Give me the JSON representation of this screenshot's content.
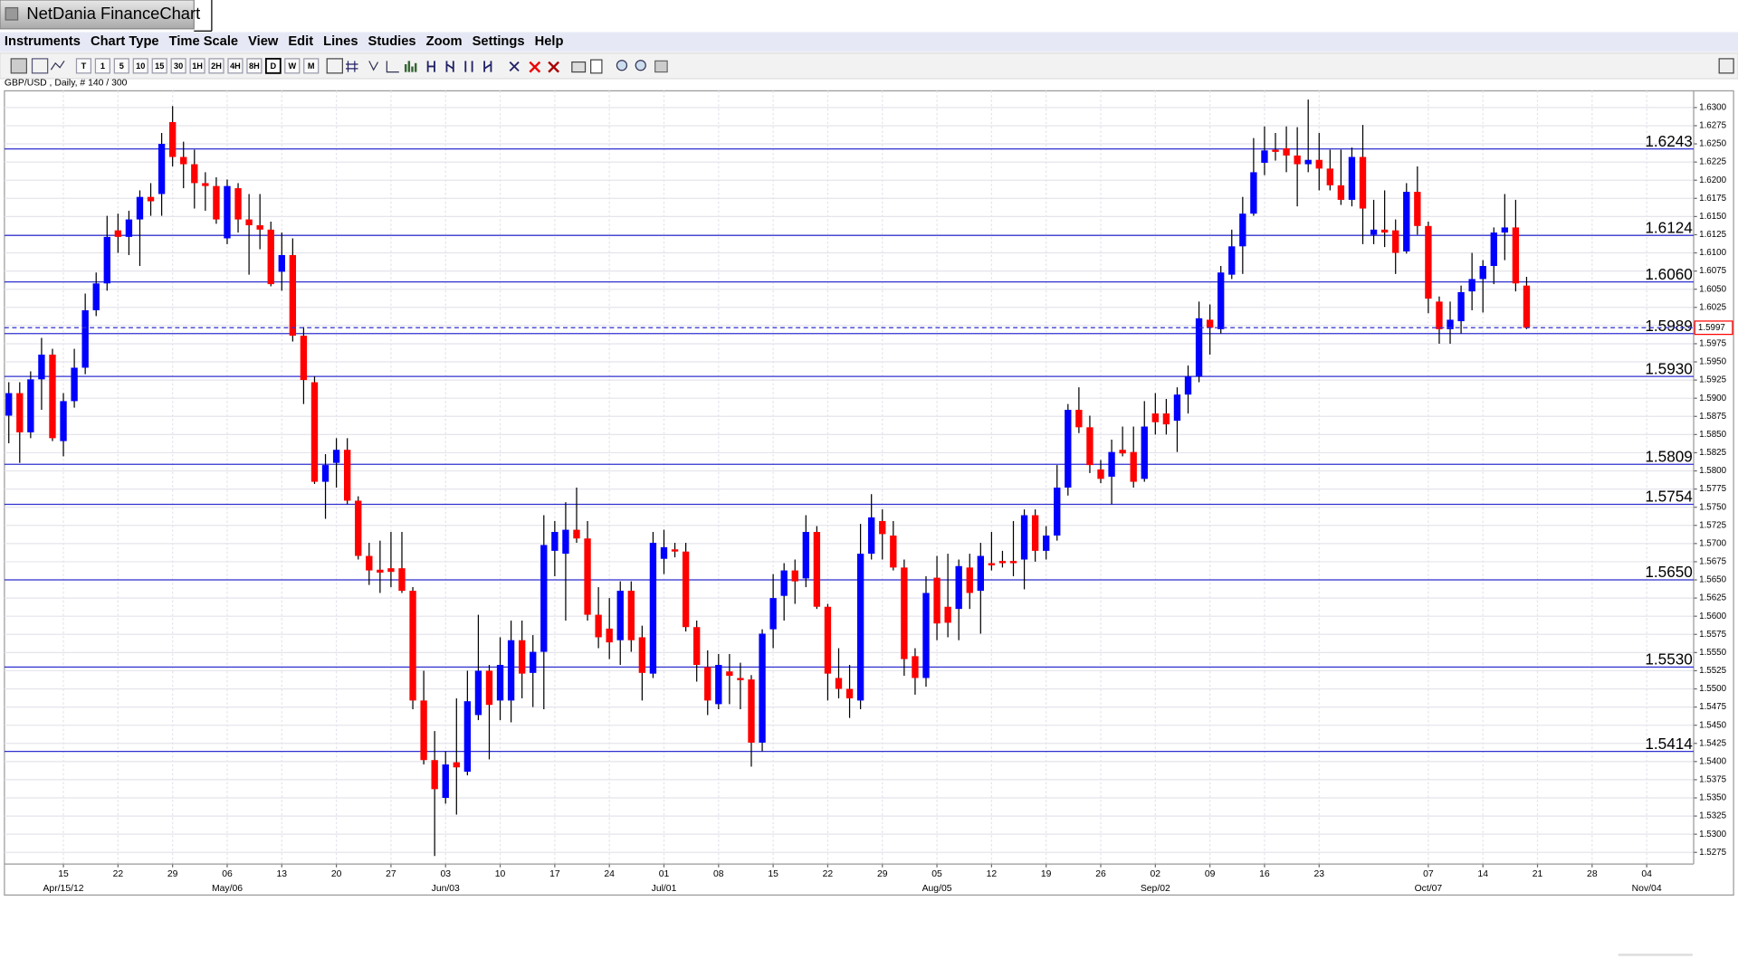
{
  "window": {
    "title": "NetDania FinanceChart"
  },
  "menu": [
    "Instruments",
    "Chart Type",
    "Time Scale",
    "View",
    "Edit",
    "Lines",
    "Studies",
    "Zoom",
    "Settings",
    "Help"
  ],
  "toolbar": {
    "timeframes": [
      "T",
      "1",
      "5",
      "10",
      "15",
      "30",
      "1H",
      "2H",
      "4H",
      "8H",
      "D",
      "W",
      "M"
    ],
    "selected": "D"
  },
  "chart_data": {
    "type": "candlestick",
    "instrument_label": "GBP/USD , Daily, # 140 / 300",
    "up_color": "#0000ff",
    "down_color": "#ff0000",
    "level_color": "#3030d0",
    "grid": true,
    "xlim": [
      -0.4,
      154.3
    ],
    "xticks": [
      {
        "value": 5,
        "label": "15"
      },
      {
        "value": 10,
        "label": "22"
      },
      {
        "value": 15,
        "label": "29"
      },
      {
        "value": 20,
        "label": "06"
      },
      {
        "value": 25,
        "label": "13"
      },
      {
        "value": 30,
        "label": "20"
      },
      {
        "value": 35,
        "label": "27"
      },
      {
        "value": 40,
        "label": "03"
      },
      {
        "value": 45,
        "label": "10"
      },
      {
        "value": 50,
        "label": "17"
      },
      {
        "value": 55,
        "label": "24"
      },
      {
        "value": 60,
        "label": "01"
      },
      {
        "value": 65,
        "label": "08"
      },
      {
        "value": 70,
        "label": "15"
      },
      {
        "value": 75,
        "label": "22"
      },
      {
        "value": 80,
        "label": "29"
      },
      {
        "value": 85,
        "label": "05"
      },
      {
        "value": 90,
        "label": "12"
      },
      {
        "value": 95,
        "label": "19"
      },
      {
        "value": 100,
        "label": "26"
      },
      {
        "value": 105,
        "label": "02"
      },
      {
        "value": 110,
        "label": "09"
      },
      {
        "value": 115,
        "label": "16"
      },
      {
        "value": 120,
        "label": "23"
      },
      {
        "value": 130,
        "label": "07"
      },
      {
        "value": 135,
        "label": "14"
      },
      {
        "value": 140,
        "label": "21"
      },
      {
        "value": 145,
        "label": "28"
      },
      {
        "value": 150,
        "label": "04"
      }
    ],
    "date_labels": [
      {
        "value": 5,
        "label": "Apr/15/12"
      },
      {
        "value": 20,
        "label": "May/06"
      },
      {
        "value": 40,
        "label": "Jun/03"
      },
      {
        "value": 60,
        "label": "Jul/01"
      },
      {
        "value": 85,
        "label": "Aug/05"
      },
      {
        "value": 105,
        "label": "Sep/02"
      },
      {
        "value": 130,
        "label": "Oct/07"
      },
      {
        "value": 150,
        "label": "Nov/04"
      }
    ],
    "ylim": [
      1.5259,
      1.6323
    ],
    "yticks": [
      1.5275,
      {
        "value": 1.53,
        "label": "1.5300"
      },
      1.5325,
      {
        "value": 1.535,
        "label": "1.5350"
      },
      1.5375,
      {
        "value": 1.54,
        "label": "1.5400"
      },
      1.5425,
      {
        "value": 1.545,
        "label": "1.5450"
      },
      1.5475,
      {
        "value": 1.55,
        "label": "1.5500"
      },
      1.5525,
      {
        "value": 1.555,
        "label": "1.5550"
      },
      1.5575,
      {
        "value": 1.56,
        "label": "1.5600"
      },
      1.5625,
      {
        "value": 1.565,
        "label": "1.5650"
      },
      1.5675,
      {
        "value": 1.57,
        "label": "1.5700"
      },
      1.5725,
      {
        "value": 1.575,
        "label": "1.5750"
      },
      1.5775,
      {
        "value": 1.58,
        "label": "1.5800"
      },
      1.5825,
      {
        "value": 1.585,
        "label": "1.5850"
      },
      1.5875,
      {
        "value": 1.59,
        "label": "1.5900"
      },
      1.5925,
      {
        "value": 1.595,
        "label": "1.5950"
      },
      1.5975,
      {
        "value": 1.6,
        "label": "1.6000"
      },
      1.6025,
      {
        "value": 1.605,
        "label": "1.6050"
      },
      1.6075,
      {
        "value": 1.61,
        "label": "1.6100"
      },
      1.6125,
      {
        "value": 1.615,
        "label": "1.6150"
      },
      1.6175,
      {
        "value": 1.62,
        "label": "1.6200"
      },
      1.6225,
      {
        "value": 1.625,
        "label": "1.6250"
      },
      1.6275,
      {
        "value": 1.63,
        "label": "1.6300"
      }
    ],
    "levels": [
      1.6243,
      1.6124,
      {
        "value": 1.606,
        "label": "1.6060"
      },
      1.5989,
      {
        "value": 1.593,
        "label": "1.5930"
      },
      1.5809,
      1.5754,
      {
        "value": 1.565,
        "label": "1.5650"
      },
      {
        "value": 1.553,
        "label": "1.5530"
      },
      1.5414
    ],
    "last_price": 1.5997,
    "open": [
      1.5876,
      1.5907,
      1.5853,
      1.5926,
      1.596,
      1.5841,
      1.5896,
      1.5942,
      1.6021,
      1.6058,
      1.6131,
      1.6122,
      1.6146,
      1.6177,
      1.6181,
      1.628,
      1.6232,
      1.6222,
      1.6196,
      1.6192,
      1.612,
      1.6189,
      1.6146,
      1.6138,
      1.6132,
      1.6074,
      1.6097,
      1.5986,
      1.5922,
      1.5785,
      1.5811,
      1.5829,
      1.5759,
      1.5683,
      1.5664,
      1.5666,
      1.5666,
      1.5635,
      1.5484,
      1.5402,
      1.535,
      1.5399,
      1.5386,
      1.5464,
      1.5525,
      1.5484,
      1.5484,
      1.5567,
      1.5522,
      1.5551,
      1.569,
      1.5686,
      1.5719,
      1.5707,
      1.5602,
      1.5583,
      1.5567,
      1.5635,
      1.5571,
      1.5521,
      1.5679,
      1.5692,
      1.5689,
      1.5585,
      1.553,
      1.5479,
      1.5524,
      1.5515,
      1.5513,
      1.5426,
      1.5582,
      1.5628,
      1.5663,
      1.5652,
      1.5716,
      1.5613,
      1.5515,
      1.55,
      1.5484,
      1.5686,
      1.5731,
      1.5711,
      1.5667,
      1.5545,
      1.5515,
      1.5653,
      1.5613,
      1.561,
      1.5667,
      1.5635,
      1.5673,
      1.5676,
      1.5676,
      1.5678,
      1.5739,
      1.569,
      1.5711,
      1.5777,
      1.5884,
      1.586,
      1.5802,
      1.5792,
      1.5829,
      1.5826,
      1.5789,
      1.5879,
      1.5879,
      1.5869,
      1.5905,
      1.593,
      1.6008,
      1.5995,
      1.607,
      1.6109,
      1.6154,
      1.6224,
      1.6242,
      1.6244,
      1.6234,
      1.6222,
      1.6228,
      1.6216,
      1.6193,
      1.6173,
      1.6232,
      1.6125,
      1.6132,
      1.6131,
      1.6102,
      1.6184,
      1.6137,
      1.6033,
      1.5995,
      1.6006,
      1.6047,
      1.6064,
      1.6082,
      1.6128,
      1.6135,
      1.6055
    ],
    "high": [
      1.5922,
      1.5922,
      1.5937,
      1.5983,
      1.5968,
      1.5907,
      1.5968,
      1.6044,
      1.6073,
      1.6151,
      1.6154,
      1.6158,
      1.6186,
      1.6196,
      1.6265,
      1.6302,
      1.6253,
      1.6242,
      1.6211,
      1.6204,
      1.6201,
      1.6196,
      1.6181,
      1.6181,
      1.6143,
      1.6128,
      1.612,
      1.5998,
      1.593,
      1.5823,
      1.5845,
      1.5845,
      1.5765,
      1.5701,
      1.5704,
      1.5716,
      1.5716,
      1.564,
      1.5525,
      1.5442,
      1.5414,
      1.5487,
      1.5525,
      1.5602,
      1.5533,
      1.5571,
      1.5594,
      1.5594,
      1.5574,
      1.5739,
      1.5731,
      1.5757,
      1.5777,
      1.5731,
      1.564,
      1.5625,
      1.5648,
      1.5648,
      1.5587,
      1.5716,
      1.5719,
      1.5701,
      1.5701,
      1.5594,
      1.5553,
      1.5548,
      1.5548,
      1.5536,
      1.5519,
      1.5582,
      1.5658,
      1.5673,
      1.5678,
      1.5739,
      1.5724,
      1.5617,
      1.5556,
      1.5533,
      1.5727,
      1.5768,
      1.5747,
      1.5731,
      1.5678,
      1.5556,
      1.5655,
      1.5683,
      1.5686,
      1.5678,
      1.5686,
      1.5701,
      1.5716,
      1.569,
      1.5731,
      1.5747,
      1.5747,
      1.5724,
      1.5808,
      1.5892,
      1.5915,
      1.5876,
      1.5815,
      1.5843,
      1.5861,
      1.5861,
      1.5896,
      1.5907,
      1.5899,
      1.5915,
      1.5945,
      1.6033,
      1.6029,
      1.6082,
      1.6132,
      1.6177,
      1.6258,
      1.6274,
      1.6265,
      1.6274,
      1.6273,
      1.6311,
      1.6265,
      1.6242,
      1.6242,
      1.6245,
      1.6276,
      1.6173,
      1.6186,
      1.6146,
      1.6196,
      1.6219,
      1.6143,
      1.604,
      1.6033,
      1.6055,
      1.61,
      1.609,
      1.6135,
      1.6181,
      1.6173,
      1.6067
    ],
    "low": [
      1.5838,
      1.5811,
      1.5845,
      1.5884,
      1.5841,
      1.582,
      1.5887,
      1.5933,
      1.6013,
      1.6048,
      1.61,
      1.6097,
      1.6082,
      1.6151,
      1.6151,
      1.6219,
      1.6189,
      1.6161,
      1.6158,
      1.614,
      1.6112,
      1.6128,
      1.607,
      1.6105,
      1.6054,
      1.6048,
      1.5978,
      1.5892,
      1.5782,
      1.5734,
      1.5777,
      1.5754,
      1.5678,
      1.5643,
      1.5632,
      1.564,
      1.5632,
      1.5472,
      1.5396,
      1.527,
      1.5342,
      1.5327,
      1.5381,
      1.5457,
      1.5403,
      1.5457,
      1.5454,
      1.5487,
      1.5475,
      1.5472,
      1.5655,
      1.5594,
      1.5701,
      1.5594,
      1.5556,
      1.5541,
      1.5533,
      1.5551,
      1.5484,
      1.5515,
      1.5658,
      1.5681,
      1.5579,
      1.551,
      1.5464,
      1.5472,
      1.5479,
      1.5472,
      1.5393,
      1.5414,
      1.5556,
      1.5594,
      1.5617,
      1.564,
      1.561,
      1.5484,
      1.5487,
      1.546,
      1.5472,
      1.5678,
      1.5678,
      1.5663,
      1.5518,
      1.5492,
      1.5503,
      1.5567,
      1.5571,
      1.5567,
      1.561,
      1.5576,
      1.5663,
      1.5667,
      1.5655,
      1.5637,
      1.5675,
      1.5678,
      1.5704,
      1.5766,
      1.5852,
      1.5797,
      1.5783,
      1.5754,
      1.582,
      1.5777,
      1.5785,
      1.585,
      1.585,
      1.5826,
      1.5879,
      1.5922,
      1.596,
      1.5989,
      1.6064,
      1.6071,
      1.6151,
      1.6207,
      1.6227,
      1.6211,
      1.6164,
      1.6211,
      1.6186,
      1.6186,
      1.6166,
      1.6164,
      1.6112,
      1.6112,
      1.6108,
      1.6071,
      1.6099,
      1.6125,
      1.6017,
      1.5975,
      1.5975,
      1.5989,
      1.6021,
      1.6018,
      1.6057,
      1.609,
      1.6047,
      1.5995
    ],
    "close": [
      1.5907,
      1.5853,
      1.5926,
      1.596,
      1.5845,
      1.5896,
      1.5942,
      1.6021,
      1.6058,
      1.6122,
      1.6122,
      1.6146,
      1.6177,
      1.6171,
      1.625,
      1.6232,
      1.6222,
      1.6196,
      1.6192,
      1.6146,
      1.6192,
      1.6146,
      1.6138,
      1.6132,
      1.6057,
      1.6097,
      1.5986,
      1.5925,
      1.5785,
      1.5808,
      1.5829,
      1.5759,
      1.5683,
      1.5663,
      1.566,
      1.5661,
      1.5635,
      1.5484,
      1.5402,
      1.5362,
      1.5396,
      1.5392,
      1.5483,
      1.5525,
      1.5478,
      1.5533,
      1.5567,
      1.5521,
      1.5551,
      1.5698,
      1.5716,
      1.5719,
      1.5707,
      1.5602,
      1.5571,
      1.5564,
      1.5635,
      1.5567,
      1.5522,
      1.5701,
      1.5695,
      1.5689,
      1.5585,
      1.5533,
      1.5484,
      1.5533,
      1.5518,
      1.5512,
      1.5426,
      1.5576,
      1.5625,
      1.5663,
      1.5648,
      1.5716,
      1.5613,
      1.5521,
      1.55,
      1.5487,
      1.5686,
      1.5736,
      1.5713,
      1.5667,
      1.5541,
      1.5515,
      1.5632,
      1.559,
      1.5591,
      1.5669,
      1.5632,
      1.5683,
      1.567,
      1.5673,
      1.5673,
      1.5739,
      1.569,
      1.5711,
      1.5777,
      1.5884,
      1.586,
      1.5808,
      1.5789,
      1.5826,
      1.5824,
      1.5785,
      1.5861,
      1.5867,
      1.5864,
      1.5905,
      1.593,
      1.601,
      1.5997,
      1.6073,
      1.6109,
      1.6154,
      1.6211,
      1.6241,
      1.6239,
      1.6234,
      1.6222,
      1.6228,
      1.6216,
      1.6193,
      1.6173,
      1.6232,
      1.6161,
      1.6132,
      1.6128,
      1.61,
      1.6184,
      1.6137,
      1.6037,
      1.5995,
      1.6008,
      1.6046,
      1.6064,
      1.6082,
      1.6128,
      1.6135,
      1.6058,
      1.5997
    ]
  }
}
